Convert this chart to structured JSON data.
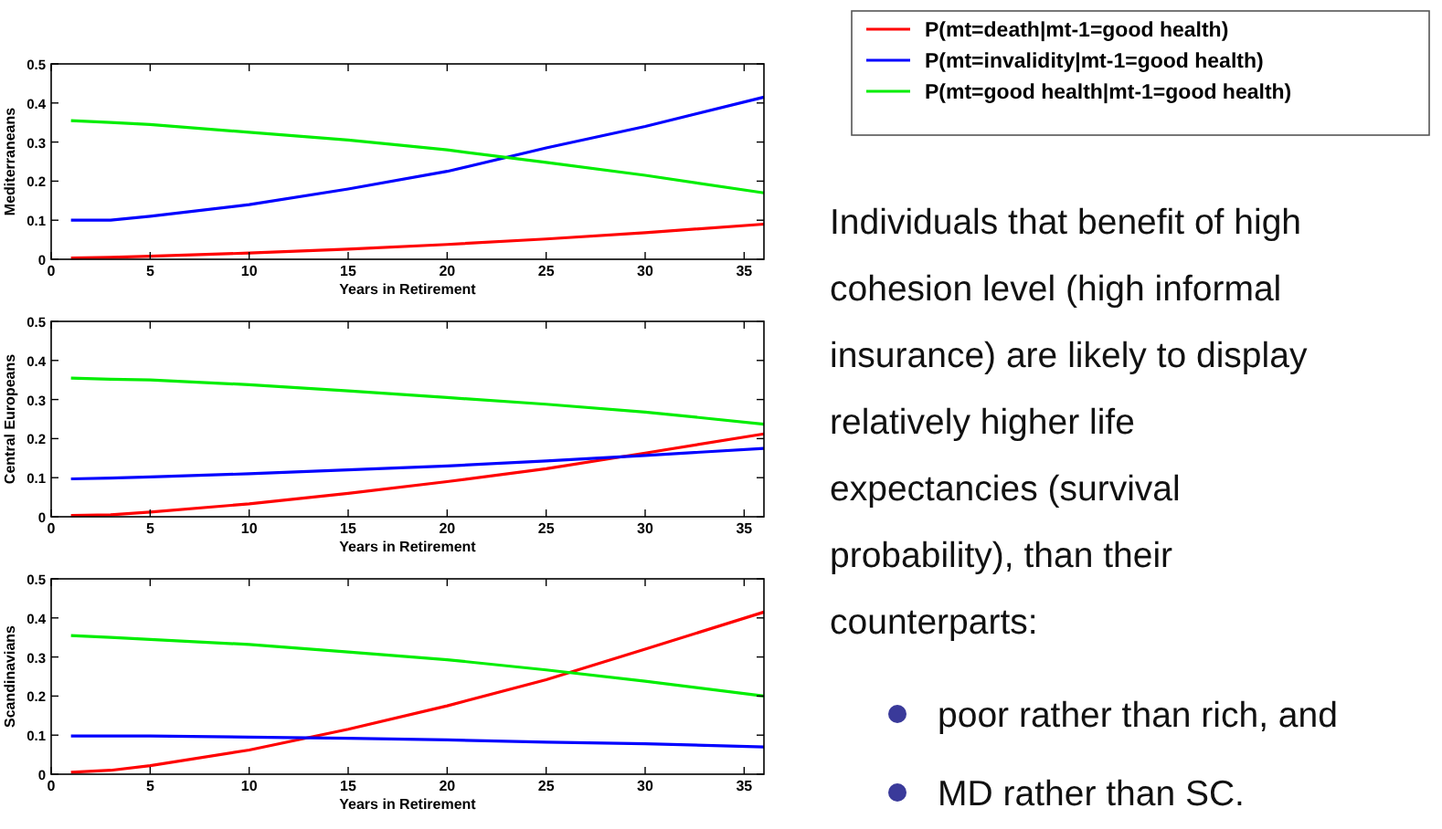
{
  "chart_data": [
    {
      "type": "line",
      "xlabel": "Years in Retirement",
      "ylabel": "Mediterraneans",
      "x": [
        1,
        3,
        5,
        10,
        15,
        20,
        25,
        30,
        36
      ],
      "xlim": [
        0,
        36
      ],
      "xticks": [
        0,
        5,
        10,
        15,
        20,
        25,
        30,
        35
      ],
      "ylim": [
        0,
        0.5
      ],
      "yticks": [
        0,
        0.1,
        0.2,
        0.3,
        0.4,
        0.5
      ],
      "legend": "top right",
      "grid": false,
      "series": [
        {
          "name": "P(mt=death|mt-1=good health)",
          "color": "#ff0000",
          "values": [
            0.003,
            0.005,
            0.008,
            0.016,
            0.026,
            0.038,
            0.052,
            0.068,
            0.09
          ]
        },
        {
          "name": "P(mt=invalidity|mt-1=good health)",
          "color": "#0000ff",
          "values": [
            0.1,
            0.1,
            0.11,
            0.14,
            0.18,
            0.225,
            0.285,
            0.34,
            0.415
          ]
        },
        {
          "name": "P(mt=good health|mt-1=good health)",
          "color": "#00ee00",
          "values": [
            0.355,
            0.35,
            0.345,
            0.325,
            0.305,
            0.28,
            0.248,
            0.215,
            0.17
          ]
        }
      ]
    },
    {
      "type": "line",
      "xlabel": "Years in Retirement",
      "ylabel": "Central Europeans",
      "x": [
        1,
        3,
        5,
        10,
        15,
        20,
        25,
        30,
        36
      ],
      "xlim": [
        0,
        36
      ],
      "xticks": [
        0,
        5,
        10,
        15,
        20,
        25,
        30,
        35
      ],
      "ylim": [
        0,
        0.5
      ],
      "yticks": [
        0,
        0.1,
        0.2,
        0.3,
        0.4,
        0.5
      ],
      "grid": false,
      "series": [
        {
          "color": "#ff0000",
          "values": [
            0.003,
            0.005,
            0.012,
            0.033,
            0.06,
            0.09,
            0.123,
            0.163,
            0.212
          ]
        },
        {
          "color": "#0000ff",
          "values": [
            0.097,
            0.099,
            0.102,
            0.11,
            0.12,
            0.13,
            0.143,
            0.157,
            0.175
          ]
        },
        {
          "color": "#00ee00",
          "values": [
            0.355,
            0.352,
            0.35,
            0.338,
            0.322,
            0.305,
            0.288,
            0.268,
            0.237
          ]
        }
      ]
    },
    {
      "type": "line",
      "xlabel": "Years in Retirement",
      "ylabel": "Scandinavians",
      "x": [
        1,
        3,
        5,
        10,
        15,
        20,
        25,
        30,
        36
      ],
      "xlim": [
        0,
        36
      ],
      "xticks": [
        0,
        5,
        10,
        15,
        20,
        25,
        30,
        35
      ],
      "ylim": [
        0,
        0.5
      ],
      "yticks": [
        0,
        0.1,
        0.2,
        0.3,
        0.4,
        0.5
      ],
      "grid": false,
      "series": [
        {
          "color": "#ff0000",
          "values": [
            0.005,
            0.01,
            0.022,
            0.062,
            0.115,
            0.175,
            0.242,
            0.32,
            0.415
          ]
        },
        {
          "color": "#0000ff",
          "values": [
            0.098,
            0.098,
            0.098,
            0.095,
            0.092,
            0.088,
            0.082,
            0.078,
            0.07
          ]
        },
        {
          "color": "#00ee00",
          "values": [
            0.355,
            0.35,
            0.345,
            0.332,
            0.313,
            0.293,
            0.267,
            0.238,
            0.2
          ]
        }
      ]
    },
    {
      "type": "other",
      "annotations": [
        "Individuals that benefit of high",
        "cohesion level (high informal",
        "insurance) are likely to display",
        "relatively higher life",
        "expectancies (survival",
        "probability), than their",
        "counterparts:"
      ],
      "categories": [
        "poor rather than rich, and",
        "MD rather than SC."
      ]
    }
  ]
}
